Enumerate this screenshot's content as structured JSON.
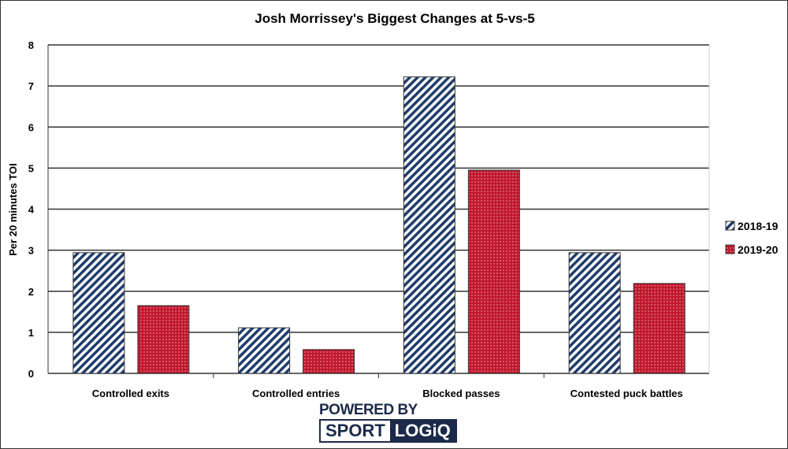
{
  "chart_data": {
    "type": "bar",
    "title": "Josh Morrissey's Biggest Changes at 5-vs-5",
    "xlabel": "",
    "ylabel": "Per 20 minutes TOI",
    "ylim": [
      0,
      8
    ],
    "yticks": [
      0,
      1,
      2,
      3,
      4,
      5,
      6,
      7,
      8
    ],
    "grid": true,
    "legend_position": "right",
    "categories": [
      "Controlled exits",
      "Controlled entries",
      "Blocked passes",
      "Contested puck battles"
    ],
    "series": [
      {
        "name": "2018-19",
        "values": [
          2.94,
          1.11,
          7.22,
          2.94
        ],
        "color": "#1f3a6b",
        "pattern": "diagonal-stripes"
      },
      {
        "name": "2019-20",
        "values": [
          1.65,
          0.58,
          4.95,
          2.19
        ],
        "color": "#c0182e",
        "pattern": "dots"
      }
    ]
  },
  "branding": {
    "powered_by": "POWERED BY",
    "brand_left": "SPORT",
    "brand_right": "LOGiQ"
  }
}
